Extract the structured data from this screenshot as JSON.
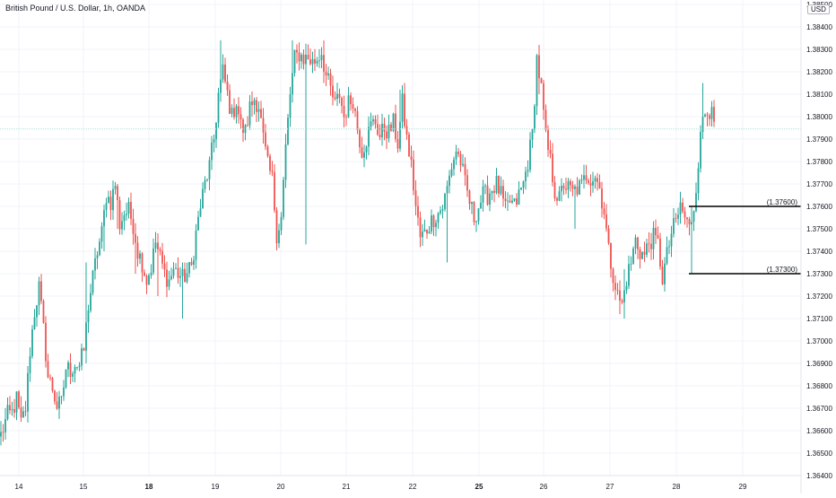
{
  "header": {
    "title": "British Pound / U.S. Dollar, 1h, OANDA",
    "currency_badge": "USD"
  },
  "colors": {
    "up": "#26a69a",
    "down": "#ef5350",
    "grid": "#f0f3fa",
    "axis_text": "#131722",
    "level_line": "#000000",
    "price_line": "#b2dfdb"
  },
  "chart_data": {
    "type": "candlestick",
    "title": "British Pound / U.S. Dollar, 1h, OANDA",
    "ylim": [
      1.364,
      1.3852
    ],
    "y_ticks": [
      "1.38500",
      "1.38400",
      "1.38300",
      "1.38200",
      "1.38100",
      "1.38000",
      "1.37900",
      "1.37800",
      "1.37700",
      "1.37600",
      "1.37500",
      "1.37400",
      "1.37300",
      "1.37200",
      "1.37100",
      "1.37000",
      "1.36900",
      "1.36800",
      "1.36700",
      "1.36600",
      "1.36500",
      "1.36400"
    ],
    "x_ticks": [
      "14",
      "15",
      "18",
      "19",
      "20",
      "21",
      "22",
      "25",
      "26",
      "27",
      "28",
      "29"
    ],
    "current_price": 1.37945,
    "levels": [
      {
        "label": "(1.37600)",
        "value": 1.376
      },
      {
        "label": "(1.37300)",
        "value": 1.373
      }
    ],
    "keypoints": [
      [
        0,
        1.3658
      ],
      [
        3,
        1.3667
      ],
      [
        5,
        1.3668
      ],
      [
        7,
        1.3674
      ],
      [
        9,
        1.3663
      ],
      [
        11,
        1.367
      ],
      [
        13,
        1.3696
      ],
      [
        15,
        1.3713
      ],
      [
        17,
        1.3724
      ],
      [
        19,
        1.3705
      ],
      [
        21,
        1.3684
      ],
      [
        23,
        1.3679
      ],
      [
        25,
        1.3671
      ],
      [
        27,
        1.3672
      ],
      [
        29,
        1.3688
      ],
      [
        31,
        1.3687
      ],
      [
        33,
        1.369
      ],
      [
        35,
        1.3689
      ],
      [
        37,
        1.3696
      ],
      [
        39,
        1.3716
      ],
      [
        41,
        1.3728
      ],
      [
        43,
        1.374
      ],
      [
        45,
        1.3748
      ],
      [
        47,
        1.3765
      ],
      [
        49,
        1.3762
      ],
      [
        51,
        1.377
      ],
      [
        53,
        1.3752
      ],
      [
        55,
        1.3757
      ],
      [
        57,
        1.3758
      ],
      [
        59,
        1.3752
      ],
      [
        61,
        1.374
      ],
      [
        63,
        1.3735
      ],
      [
        65,
        1.3727
      ],
      [
        67,
        1.3733
      ],
      [
        69,
        1.3744
      ],
      [
        71,
        1.3737
      ],
      [
        73,
        1.373
      ],
      [
        75,
        1.3727
      ],
      [
        77,
        1.3732
      ],
      [
        79,
        1.373
      ],
      [
        81,
        1.3728
      ],
      [
        83,
        1.373
      ],
      [
        85,
        1.3733
      ],
      [
        87,
        1.3748
      ],
      [
        89,
        1.376
      ],
      [
        91,
        1.377
      ],
      [
        93,
        1.3778
      ],
      [
        95,
        1.379
      ],
      [
        97,
        1.381
      ],
      [
        99,
        1.382
      ],
      [
        101,
        1.381
      ],
      [
        103,
        1.38
      ],
      [
        105,
        1.3807
      ],
      [
        107,
        1.3796
      ],
      [
        109,
        1.3793
      ],
      [
        111,
        1.3804
      ],
      [
        113,
        1.3808
      ],
      [
        115,
        1.3805
      ],
      [
        117,
        1.379
      ],
      [
        119,
        1.3778
      ],
      [
        121,
        1.3772
      ],
      [
        123,
        1.3748
      ],
      [
        125,
        1.3755
      ],
      [
        127,
        1.3786
      ],
      [
        129,
        1.381
      ],
      [
        131,
        1.3826
      ],
      [
        133,
        1.3828
      ],
      [
        135,
        1.3826
      ],
      [
        137,
        1.3826
      ],
      [
        139,
        1.3824
      ],
      [
        141,
        1.3826
      ],
      [
        143,
        1.3829
      ],
      [
        145,
        1.3818
      ],
      [
        147,
        1.3812
      ],
      [
        149,
        1.3805
      ],
      [
        151,
        1.381
      ],
      [
        153,
        1.38
      ],
      [
        155,
        1.3806
      ],
      [
        157,
        1.3808
      ],
      [
        159,
        1.3795
      ],
      [
        161,
        1.3785
      ],
      [
        163,
        1.379
      ],
      [
        165,
        1.3796
      ],
      [
        167,
        1.3798
      ],
      [
        169,
        1.3791
      ],
      [
        171,
        1.3795
      ],
      [
        173,
        1.3793
      ],
      [
        175,
        1.3797
      ],
      [
        177,
        1.3788
      ],
      [
        179,
        1.3806
      ],
      [
        181,
        1.379
      ],
      [
        183,
        1.3778
      ],
      [
        185,
        1.376
      ],
      [
        187,
        1.3746
      ],
      [
        189,
        1.3748
      ],
      [
        191,
        1.3752
      ],
      [
        193,
        1.3755
      ],
      [
        195,
        1.3757
      ],
      [
        197,
        1.376
      ],
      [
        199,
        1.3768
      ],
      [
        201,
        1.3778
      ],
      [
        203,
        1.3785
      ],
      [
        205,
        1.378
      ],
      [
        207,
        1.377
      ],
      [
        209,
        1.3762
      ],
      [
        211,
        1.3755
      ],
      [
        213,
        1.376
      ],
      [
        215,
        1.3765
      ],
      [
        217,
        1.3765
      ],
      [
        219,
        1.3768
      ],
      [
        221,
        1.377
      ],
      [
        223,
        1.3765
      ],
      [
        225,
        1.3758
      ],
      [
        227,
        1.3762
      ],
      [
        229,
        1.376
      ],
      [
        231,
        1.3765
      ],
      [
        233,
        1.377
      ],
      [
        235,
        1.378
      ],
      [
        237,
        1.3792
      ],
      [
        239,
        1.3826
      ],
      [
        241,
        1.3812
      ],
      [
        243,
        1.379
      ],
      [
        245,
        1.378
      ],
      [
        247,
        1.3767
      ],
      [
        249,
        1.3763
      ],
      [
        251,
        1.377
      ],
      [
        253,
        1.3768
      ],
      [
        255,
        1.3766
      ],
      [
        257,
        1.3768
      ],
      [
        259,
        1.3769
      ],
      [
        261,
        1.3774
      ],
      [
        263,
        1.3773
      ],
      [
        265,
        1.3774
      ],
      [
        267,
        1.3768
      ],
      [
        269,
        1.3758
      ],
      [
        271,
        1.374
      ],
      [
        273,
        1.373
      ],
      [
        275,
        1.372
      ],
      [
        277,
        1.3716
      ],
      [
        279,
        1.3728
      ],
      [
        281,
        1.3735
      ],
      [
        283,
        1.3745
      ],
      [
        285,
        1.374
      ],
      [
        287,
        1.3738
      ],
      [
        289,
        1.3744
      ],
      [
        291,
        1.3746
      ],
      [
        293,
        1.3743
      ],
      [
        295,
        1.3728
      ],
      [
        297,
        1.3738
      ],
      [
        299,
        1.3748
      ],
      [
        301,
        1.3753
      ],
      [
        303,
        1.376
      ],
      [
        305,
        1.3755
      ],
      [
        307,
        1.375
      ],
      [
        309,
        1.376
      ],
      [
        311,
        1.378
      ],
      [
        313,
        1.38
      ],
      [
        315,
        1.3805
      ],
      [
        317,
        1.38
      ],
      [
        318,
        1.3795
      ]
    ],
    "spikes": [
      [
        38,
        1.3735,
        1.369
      ],
      [
        46,
        1.376,
        1.374
      ],
      [
        52,
        1.377,
        1.375
      ],
      [
        60,
        1.3748,
        1.373
      ],
      [
        70,
        1.3748,
        1.372
      ],
      [
        81,
        1.3735,
        1.371
      ],
      [
        98,
        1.3834,
        1.381
      ],
      [
        112,
        1.381,
        1.38
      ],
      [
        136,
        1.375,
        1.3743
      ],
      [
        130,
        1.3834,
        1.3815
      ],
      [
        144,
        1.3834,
        1.3815
      ],
      [
        178,
        1.3812,
        1.379
      ],
      [
        199,
        1.374,
        1.3735
      ],
      [
        240,
        1.383,
        1.381
      ],
      [
        256,
        1.3755,
        1.375
      ],
      [
        276,
        1.3727,
        1.3712
      ],
      [
        278,
        1.3732,
        1.371
      ],
      [
        296,
        1.3735,
        1.3722
      ],
      [
        308,
        1.376,
        1.373
      ],
      [
        313,
        1.3815,
        1.379
      ]
    ]
  }
}
